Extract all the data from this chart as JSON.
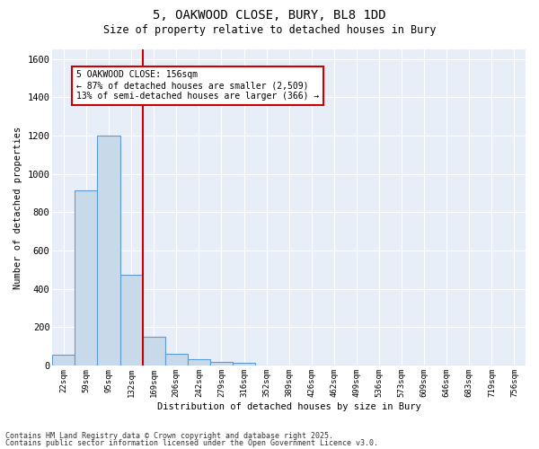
{
  "title_line1": "5, OAKWOOD CLOSE, BURY, BL8 1DD",
  "title_line2": "Size of property relative to detached houses in Bury",
  "xlabel": "Distribution of detached houses by size in Bury",
  "ylabel": "Number of detached properties",
  "bar_color": "#c8daea",
  "bar_edge_color": "#5b9bd5",
  "categories": [
    "22sqm",
    "59sqm",
    "95sqm",
    "132sqm",
    "169sqm",
    "206sqm",
    "242sqm",
    "279sqm",
    "316sqm",
    "352sqm",
    "389sqm",
    "426sqm",
    "462sqm",
    "499sqm",
    "536sqm",
    "573sqm",
    "609sqm",
    "646sqm",
    "683sqm",
    "719sqm",
    "756sqm"
  ],
  "values": [
    55,
    915,
    1200,
    475,
    150,
    60,
    32,
    18,
    15,
    0,
    0,
    0,
    0,
    0,
    0,
    0,
    0,
    0,
    0,
    0,
    0
  ],
  "vline_x": 3.5,
  "vline_color": "#cc0000",
  "annotation_text": "5 OAKWOOD CLOSE: 156sqm\n← 87% of detached houses are smaller (2,509)\n13% of semi-detached houses are larger (366) →",
  "annotation_box_color": "#ffffff",
  "annotation_box_edge": "#cc0000",
  "ylim": [
    0,
    1650
  ],
  "yticks": [
    0,
    200,
    400,
    600,
    800,
    1000,
    1200,
    1400,
    1600
  ],
  "fig_bg_color": "#ffffff",
  "plot_bg_color": "#e8eef8",
  "grid_color": "#ffffff",
  "footnote1": "Contains HM Land Registry data © Crown copyright and database right 2025.",
  "footnote2": "Contains public sector information licensed under the Open Government Licence v3.0."
}
